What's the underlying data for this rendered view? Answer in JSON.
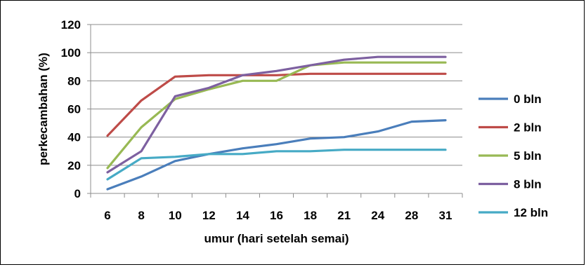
{
  "chart_data": {
    "type": "line",
    "title": "",
    "xlabel": "umur (hari setelah semai)",
    "ylabel": "perkecambahan (%)",
    "ylim": [
      0,
      120
    ],
    "yticks": [
      0,
      20,
      40,
      60,
      80,
      100,
      120
    ],
    "categories": [
      "6",
      "8",
      "10",
      "12",
      "14",
      "16",
      "18",
      "21",
      "24",
      "28",
      "31"
    ],
    "grid": "horizontal",
    "legend_position": "right",
    "series": [
      {
        "name": "0 bln",
        "color": "#4a7ebb",
        "values": [
          3,
          12,
          23,
          28,
          32,
          35,
          39,
          40,
          44,
          51,
          52
        ]
      },
      {
        "name": "2 bln",
        "color": "#be4b48",
        "values": [
          41,
          66,
          83,
          84,
          84,
          84,
          85,
          85,
          85,
          85,
          85
        ]
      },
      {
        "name": "5 bln",
        "color": "#98b954",
        "values": [
          18,
          47,
          67,
          74,
          80,
          80,
          91,
          93,
          93,
          93,
          93
        ]
      },
      {
        "name": "8 bln",
        "color": "#7d60a0",
        "values": [
          15,
          30,
          69,
          75,
          84,
          87,
          91,
          95,
          97,
          97,
          97
        ]
      },
      {
        "name": "12 bln",
        "color": "#46aac5",
        "values": [
          10,
          25,
          26,
          28,
          28,
          30,
          30,
          31,
          31,
          31,
          31
        ]
      }
    ]
  }
}
